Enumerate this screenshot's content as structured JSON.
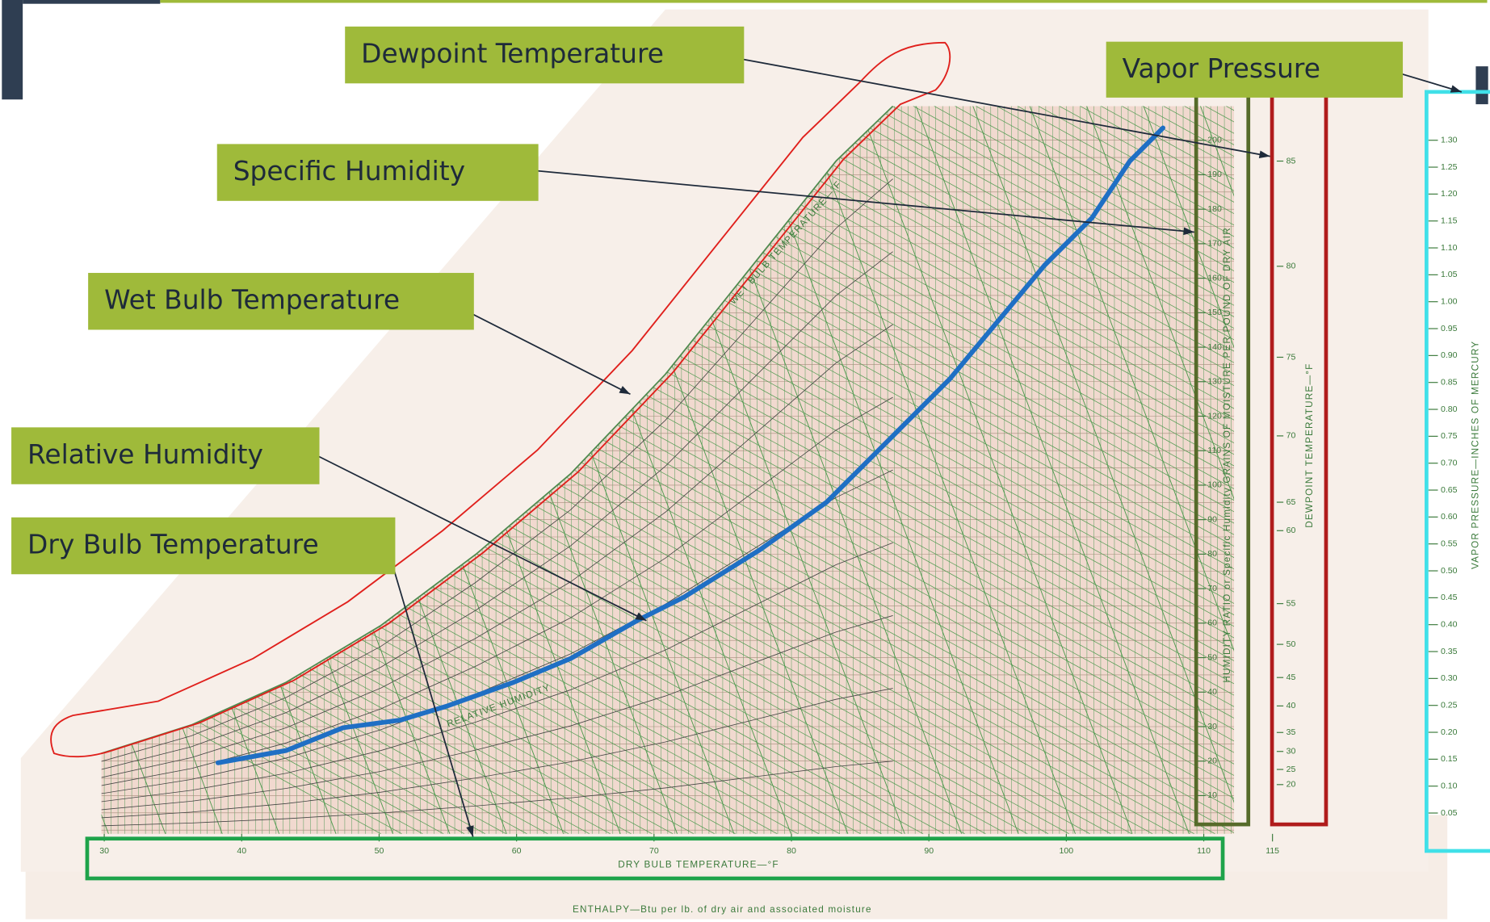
{
  "annotations": [
    {
      "text": "Dewpoint Temperature"
    },
    {
      "text": "Vapor Pressure"
    },
    {
      "text": "Specific Humidity"
    },
    {
      "text": "Wet Bulb Temperature"
    },
    {
      "text": "Relative Humidity"
    },
    {
      "text": "Dry Bulb Temperature"
    }
  ],
  "chart": {
    "dry_bulb_title": "DRY BULB TEMPERATURE—°F",
    "enthalpy_title": "ENTHALPY—Btu per lb. of dry air and associated moisture",
    "dewpoint_title": "DEWPOINT TEMPERATURE—°F",
    "humidity_title": "HUMIDITY RATIO or Specific Humidity GRAINS OF MOISTURE PER POUND OF DRY AIR",
    "vapor_title": "VAPOR PRESSURE—INCHES OF MERCURY",
    "wet_bulb_title": "WET BULB TEMPERATURE—°F",
    "relative_humidity_title": "RELATIVE HUMIDITY",
    "dry_bulb_ticks": [
      30,
      40,
      50,
      60,
      70,
      80,
      90,
      100,
      110,
      115
    ],
    "humidity_ticks": [
      200,
      190,
      180,
      170,
      160,
      150,
      140,
      130,
      120,
      110,
      100,
      90,
      80,
      70,
      60,
      50,
      40,
      30,
      20,
      10
    ],
    "dewpoint_ticks": [
      85,
      80,
      75,
      70,
      65,
      60,
      55,
      50,
      45,
      40,
      35,
      30,
      25,
      20
    ],
    "vapor_ticks": [
      "1.30",
      "1.25",
      "1.20",
      "1.15",
      "1.10",
      "1.05",
      "1.00",
      "0.95",
      "0.90",
      "0.85",
      "0.80",
      "0.75",
      "0.70",
      "0.65",
      "0.60",
      "0.55",
      "0.50",
      "0.45",
      "0.40",
      "0.35",
      "0.30",
      "0.25",
      "0.20",
      "0.15",
      "0.10",
      "0.05"
    ]
  }
}
